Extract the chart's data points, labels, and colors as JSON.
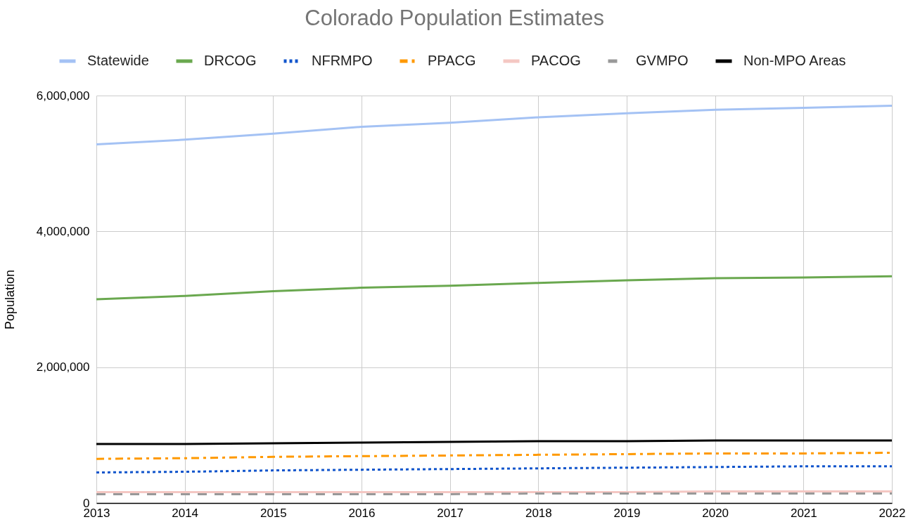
{
  "chart_data": {
    "type": "line",
    "title": "Colorado Population Estimates",
    "ylabel": "Population",
    "x": [
      2013,
      2014,
      2015,
      2016,
      2017,
      2018,
      2019,
      2020,
      2021,
      2022
    ],
    "xlim": [
      2013,
      2022
    ],
    "xticks": [
      2013,
      2014,
      2015,
      2016,
      2017,
      2018,
      2019,
      2020,
      2021,
      2022
    ],
    "ylim": [
      0,
      6000000
    ],
    "yticks": [
      {
        "value": 0,
        "label": "0"
      },
      {
        "value": 2000000,
        "label": "2,000,000"
      },
      {
        "value": 4000000,
        "label": "4,000,000"
      },
      {
        "value": 6000000,
        "label": "6,000,000"
      }
    ],
    "grid": true,
    "legend": "top",
    "series": [
      {
        "name": "Statewide",
        "color": "#a4c2f4",
        "line_style": "solid",
        "values": [
          5280000,
          5350000,
          5440000,
          5540000,
          5600000,
          5680000,
          5740000,
          5790000,
          5820000,
          5850000
        ]
      },
      {
        "name": "DRCOG",
        "color": "#6aa84f",
        "line_style": "solid",
        "values": [
          3000000,
          3050000,
          3120000,
          3170000,
          3200000,
          3240000,
          3280000,
          3310000,
          3320000,
          3340000
        ]
      },
      {
        "name": "NFRMPO",
        "color": "#1155cc",
        "line_style": "dotted",
        "values": [
          450000,
          460000,
          480000,
          490000,
          500000,
          510000,
          520000,
          530000,
          540000,
          540000
        ]
      },
      {
        "name": "PPACG",
        "color": "#ff9900",
        "line_style": "dashdot",
        "values": [
          650000,
          660000,
          680000,
          690000,
          700000,
          710000,
          720000,
          730000,
          730000,
          740000
        ]
      },
      {
        "name": "PACOG",
        "color": "#f4c7c3",
        "line_style": "solid",
        "values": [
          160000,
          160000,
          160000,
          160000,
          160000,
          160000,
          160000,
          170000,
          170000,
          170000
        ]
      },
      {
        "name": "GVMPO",
        "color": "#999999",
        "line_style": "dashed",
        "values": [
          130000,
          130000,
          130000,
          130000,
          130000,
          140000,
          140000,
          140000,
          140000,
          140000
        ]
      },
      {
        "name": "Non-MPO Areas",
        "color": "#000000",
        "line_style": "solid",
        "values": [
          870000,
          870000,
          880000,
          890000,
          900000,
          910000,
          910000,
          920000,
          920000,
          920000
        ]
      }
    ]
  }
}
